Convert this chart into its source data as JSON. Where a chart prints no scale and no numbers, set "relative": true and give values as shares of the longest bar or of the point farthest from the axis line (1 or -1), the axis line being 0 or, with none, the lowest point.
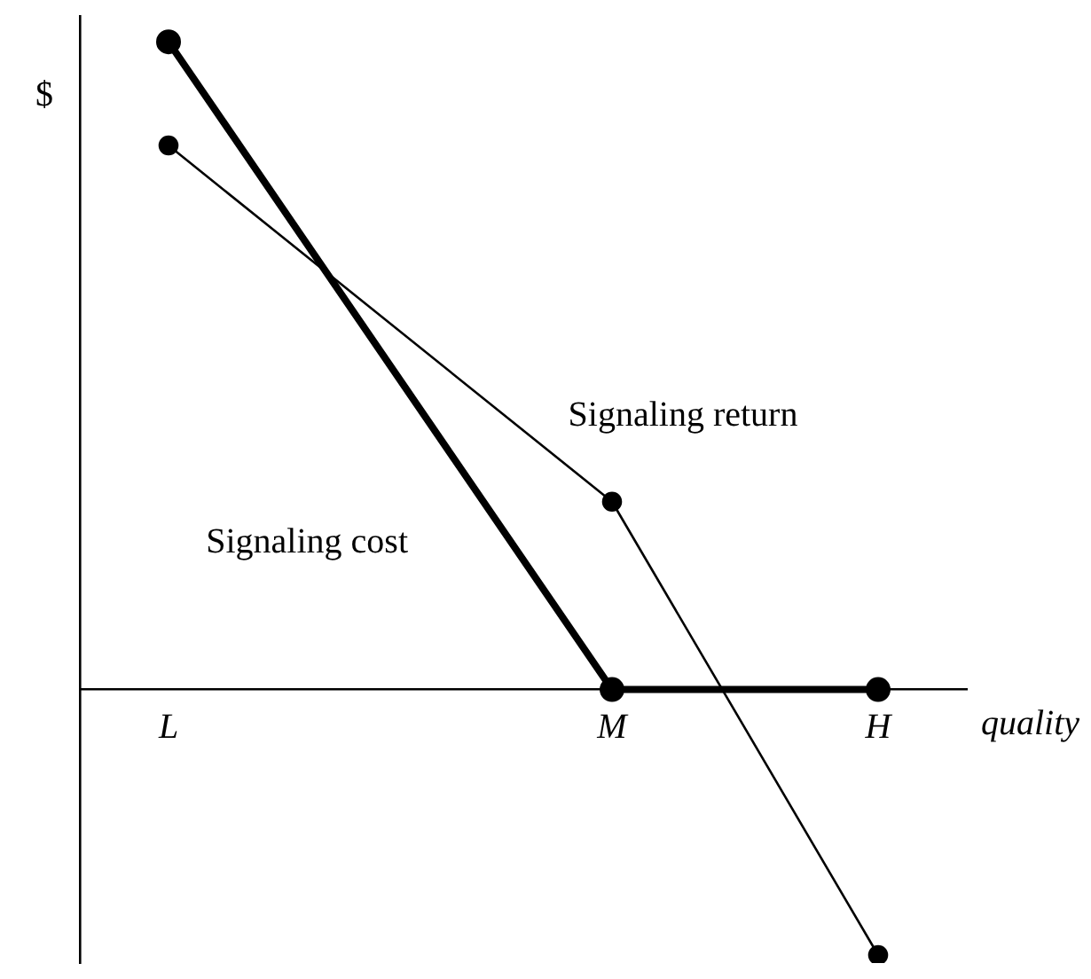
{
  "chart_data": {
    "type": "line",
    "relative": true,
    "xlabel": "quality",
    "ylabel": "$",
    "categories": [
      null,
      "L",
      null,
      null,
      null,
      null,
      "M",
      null,
      null,
      "H",
      null
    ],
    "series": [
      {
        "name": "Signaling cost",
        "color": "#000000",
        "values": [
          null,
          1,
          null,
          null,
          null,
          null,
          0,
          null,
          null,
          0,
          null
        ]
      },
      {
        "name": "Signaling return",
        "color": "#000000",
        "values": [
          null,
          0.84,
          null,
          null,
          null,
          null,
          0.29,
          null,
          null,
          -0.41,
          null
        ]
      }
    ],
    "marker": "circle",
    "line_style": "solid",
    "legend": false,
    "grid": false
  }
}
